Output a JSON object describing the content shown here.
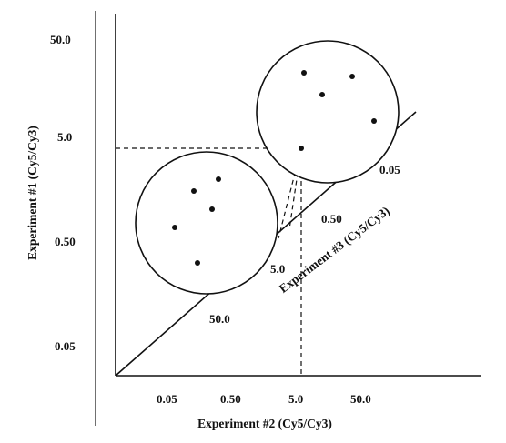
{
  "diagram": {
    "y_axis": {
      "title": "Experiment #1 (Cy5/Cy3)",
      "ticks": [
        "50.0",
        "5.0",
        "0.50",
        "0.05"
      ]
    },
    "x_axis": {
      "title": "Experiment #2 (Cy5/Cy3)",
      "ticks": [
        "0.05",
        "0.50",
        "5.0",
        "50.0"
      ]
    },
    "diagonal_axis": {
      "title": "Experiment #3 (Cy5/Cy3)",
      "ticks": [
        "0.05",
        "0.50",
        "5.0",
        "50.0"
      ]
    },
    "clusters": [
      {
        "name": "lower-cluster",
        "points": 5
      },
      {
        "name": "upper-cluster",
        "points": 5
      }
    ],
    "colors": {
      "ink": "#111111",
      "background": "#ffffff"
    }
  }
}
